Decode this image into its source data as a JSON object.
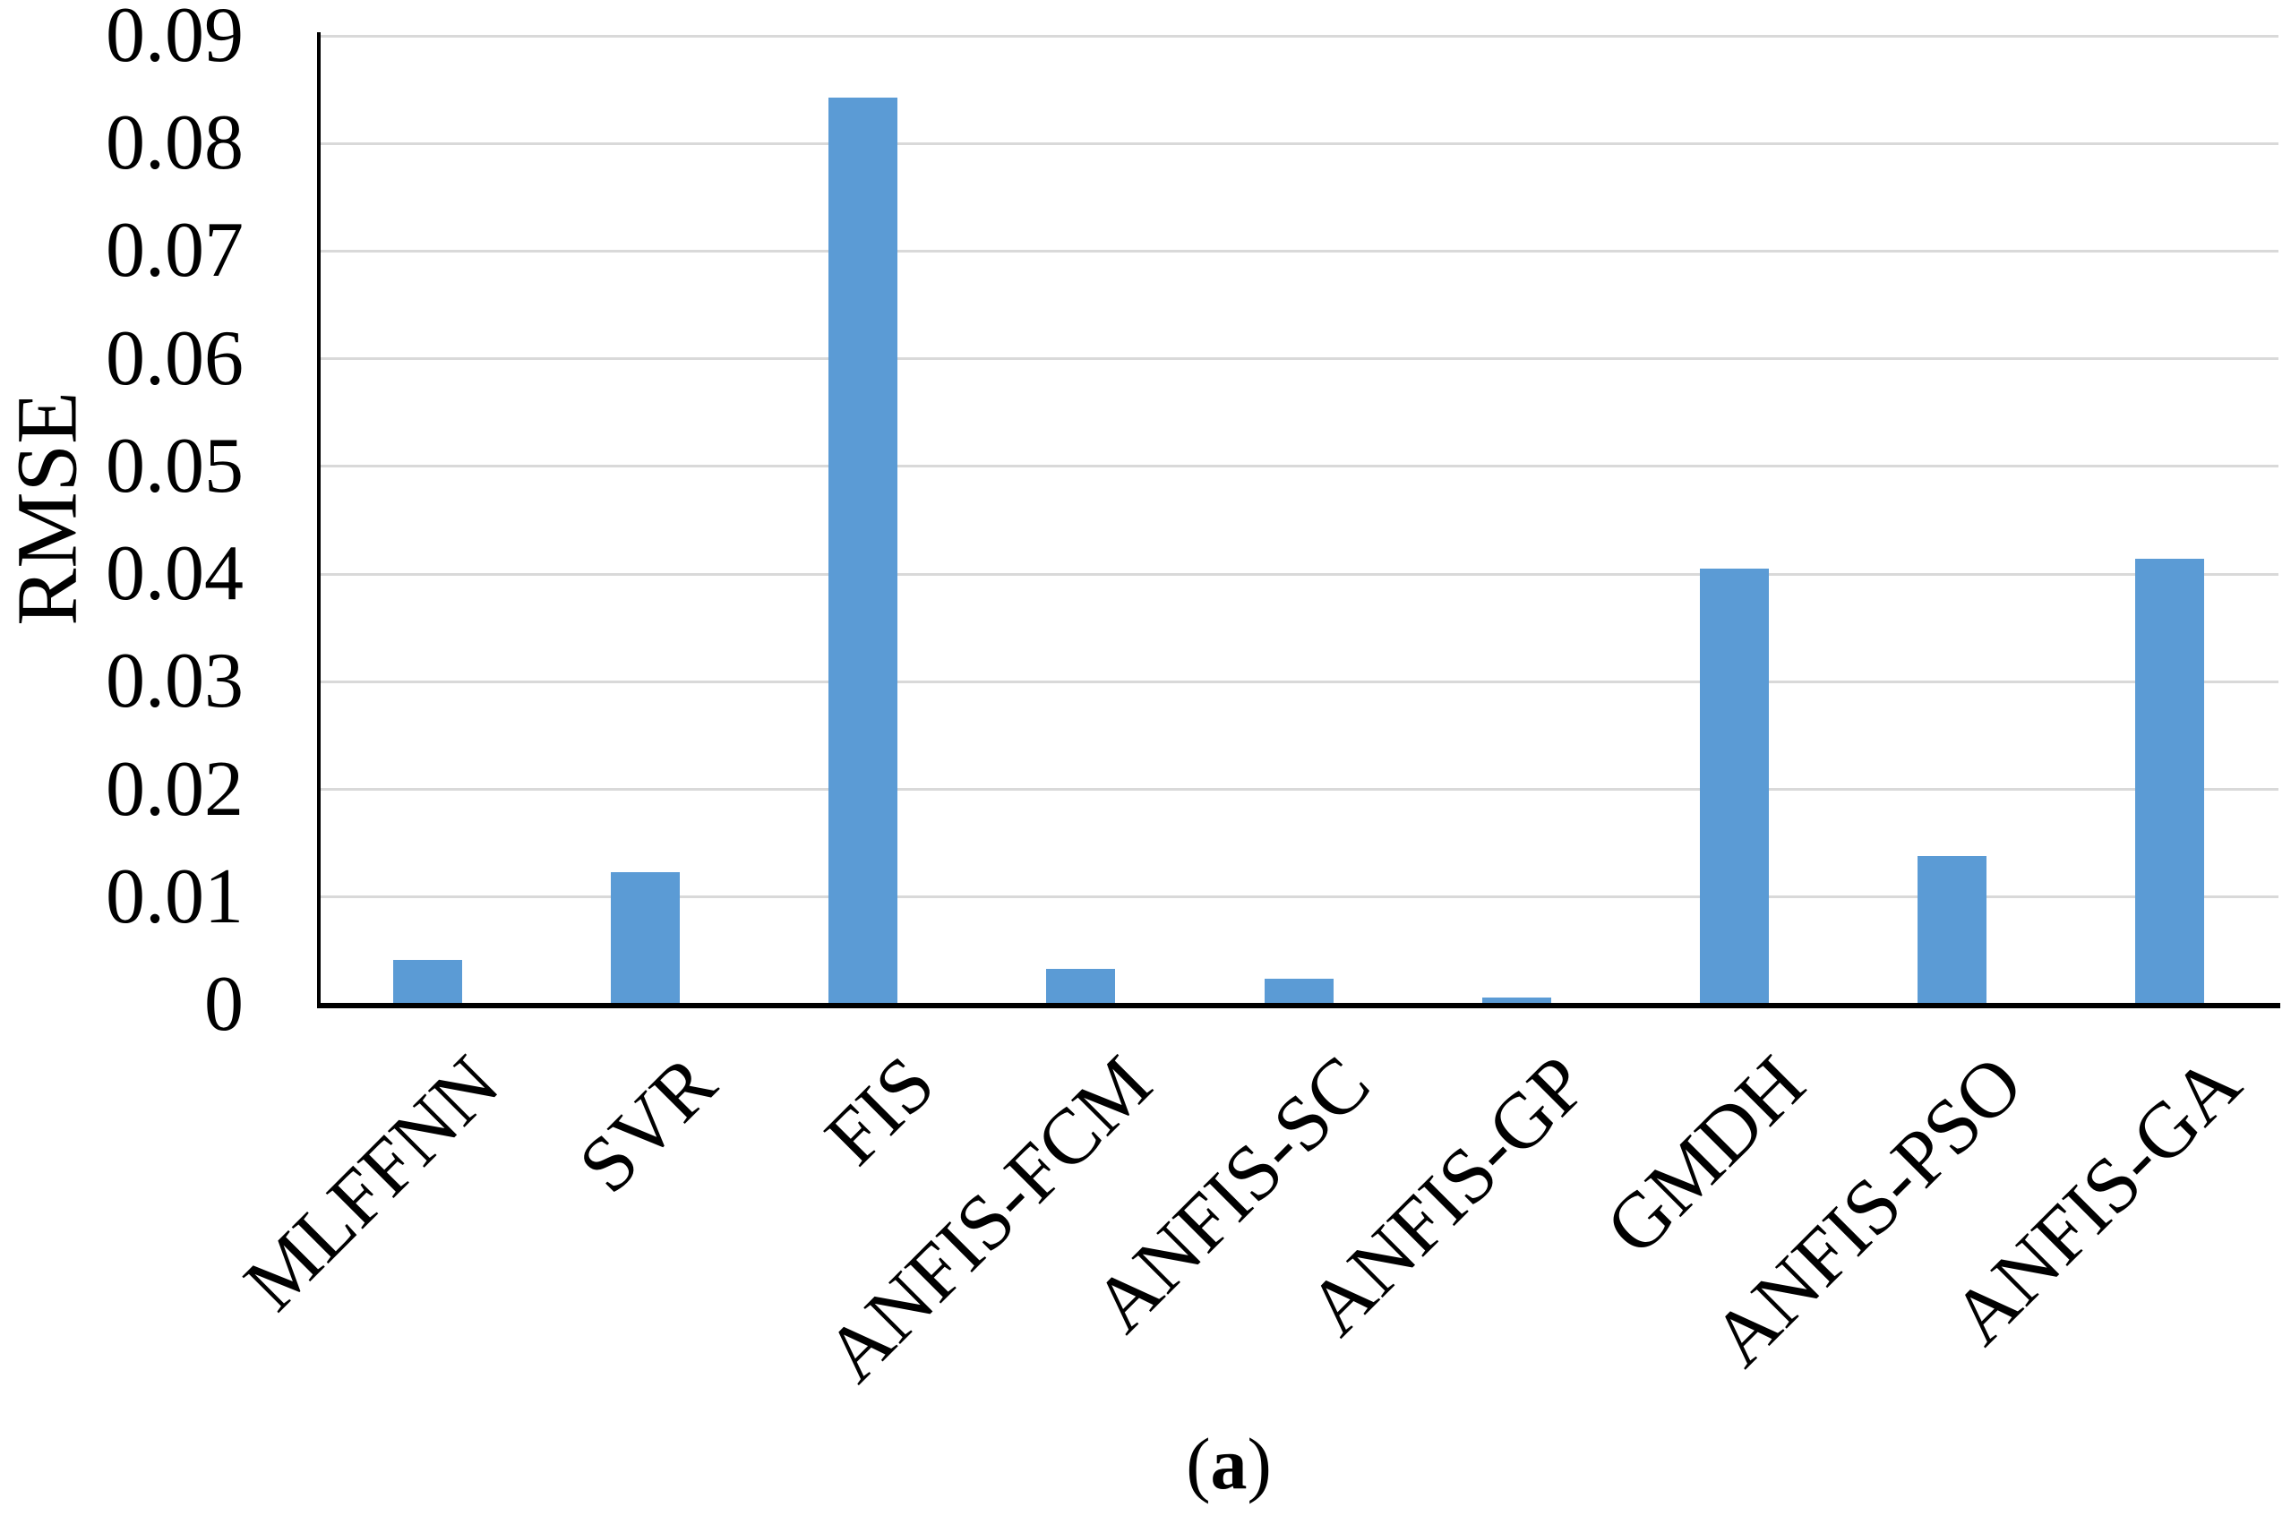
{
  "figure": {
    "caption": {
      "open": "(",
      "letter": "a",
      "close": ")"
    }
  },
  "chart_data": {
    "type": "bar",
    "title": "",
    "xlabel": "",
    "ylabel": "RMSE",
    "categories": [
      "MLFFNN",
      "SVR",
      "FIS",
      "ANFIS-FCM",
      "ANFIS-SC",
      "ANFIS-GP",
      "GMDH",
      "ANFIS-PSO",
      "ANFIS-GA"
    ],
    "values": [
      0.0042,
      0.0123,
      0.0843,
      0.0033,
      0.0024,
      0.0007,
      0.0405,
      0.0138,
      0.0414
    ],
    "ylim": [
      0,
      0.09
    ],
    "ytick_step": 0.01,
    "ytick_labels": [
      "0",
      "0.01",
      "0.02",
      "0.03",
      "0.04",
      "0.05",
      "0.06",
      "0.07",
      "0.08",
      "0.09"
    ],
    "grid": "horizontal-only",
    "legend": "none",
    "colors": {
      "bar": "#5B9BD5",
      "gridline": "#D9D9D9",
      "axis": "#000000",
      "text": "#000000"
    }
  }
}
